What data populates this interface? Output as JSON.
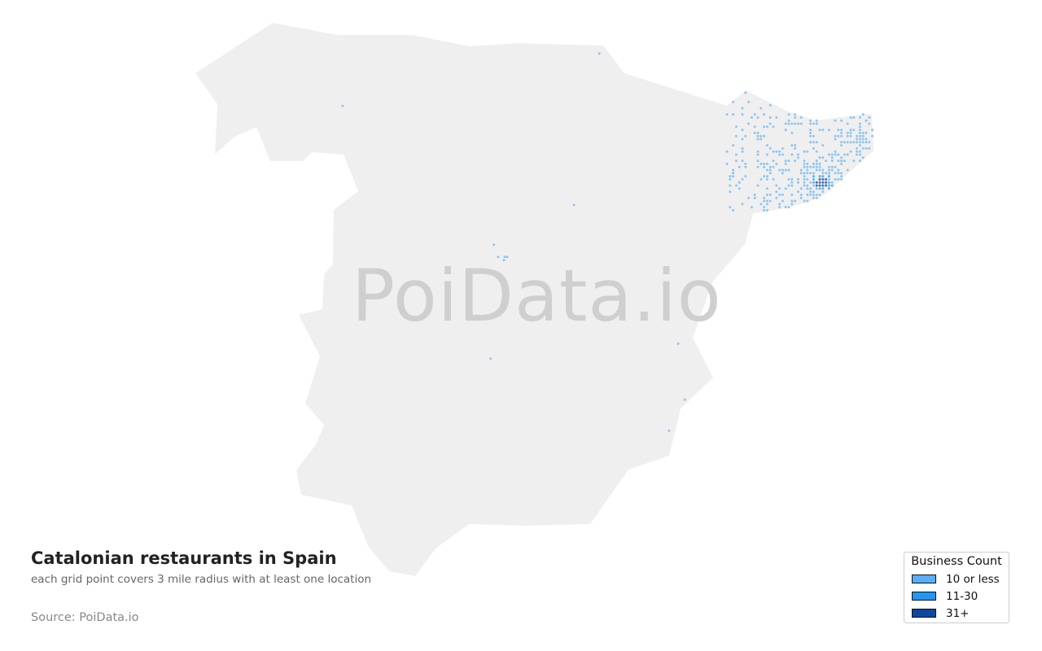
{
  "map": {
    "title": "Catalonian restaurants in Spain",
    "subtitle": "each grid point covers 3 mile radius with at least one location",
    "source": "Source: PoiData.io",
    "watermark": "PoiData.io",
    "region": "Spain",
    "colors": {
      "land": "#efefef",
      "low": "#5aaef5",
      "mid": "#2196f3",
      "high": "#0d47a1"
    },
    "outlier_points_lonlat": [
      [
        -1.95,
        43.32
      ],
      [
        -6.7,
        42.58
      ],
      [
        -2.42,
        41.18
      ],
      [
        -3.9,
        40.62
      ],
      [
        -3.82,
        40.445
      ],
      [
        -3.7,
        40.445
      ],
      [
        -3.715,
        40.4
      ],
      [
        -3.655,
        40.445
      ],
      [
        -3.96,
        39.01
      ],
      [
        -0.49,
        39.22
      ],
      [
        -0.37,
        38.43
      ],
      [
        -0.66,
        37.99
      ]
    ]
  },
  "legend": {
    "title": "Business Count",
    "items": [
      {
        "label": "10 or less",
        "color": "#5aaef5"
      },
      {
        "label": "11-30",
        "color": "#2196f3"
      },
      {
        "label": "31+",
        "color": "#0d47a1"
      }
    ]
  }
}
